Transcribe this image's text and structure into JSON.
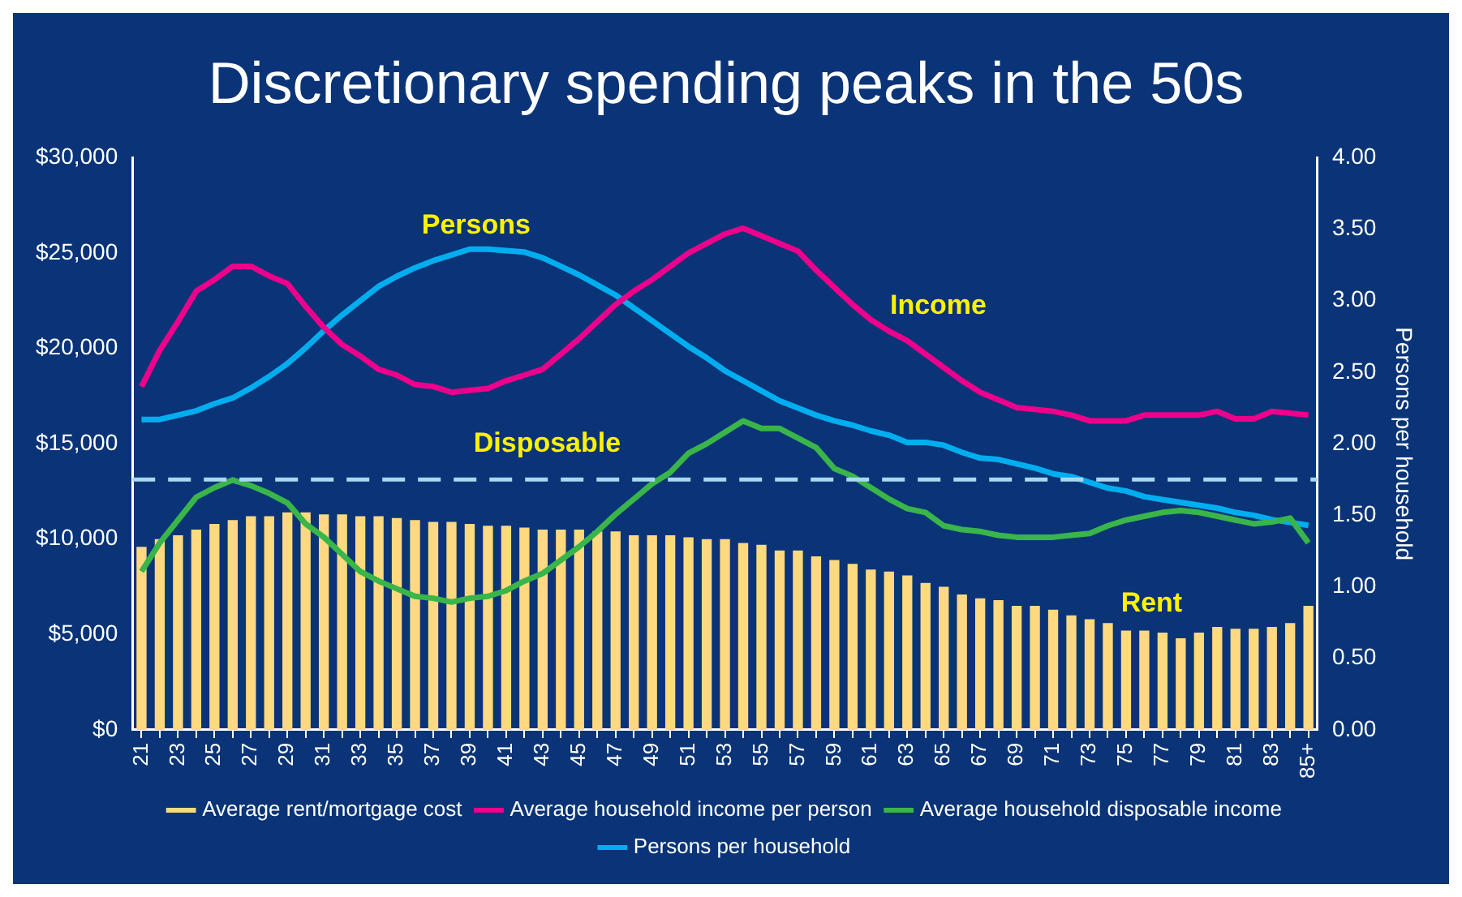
{
  "chart_data": {
    "type": "bar",
    "title": "Discretionary spending peaks in the 50s",
    "y2label": "Persons per household",
    "categories": [
      "21",
      null,
      "23",
      null,
      "25",
      null,
      "27",
      null,
      "29",
      null,
      "31",
      null,
      "33",
      null,
      "35",
      null,
      "37",
      null,
      "39",
      null,
      "41",
      null,
      "43",
      null,
      "45",
      null,
      "47",
      null,
      "49",
      null,
      "51",
      null,
      "53",
      null,
      "55",
      null,
      "57",
      null,
      "59",
      null,
      "61",
      null,
      "63",
      null,
      "65",
      null,
      "67",
      null,
      "69",
      null,
      "71",
      null,
      "73",
      null,
      "75",
      null,
      "77",
      null,
      "79",
      null,
      "81",
      null,
      "83",
      null,
      "85+"
    ],
    "series": [
      {
        "name": "Average rent/mortgage cost",
        "color": "#ffd97f",
        "values": [
          9600,
          10000,
          10200,
          10500,
          10800,
          11000,
          11200,
          11200,
          11400,
          11400,
          11300,
          11300,
          11200,
          11200,
          11100,
          11000,
          10900,
          10900,
          10800,
          10700,
          10700,
          10600,
          10500,
          10500,
          10500,
          10400,
          10400,
          10200,
          10200,
          10200,
          10100,
          10000,
          10000,
          9800,
          9700,
          9400,
          9400,
          9100,
          8900,
          8700,
          8400,
          8300,
          8100,
          7700,
          7500,
          7100,
          6900,
          6800,
          6500,
          6500,
          6300,
          6000,
          5800,
          5600,
          5200,
          5200,
          5100,
          4800,
          5100,
          5400,
          5300,
          5300,
          5400,
          5600,
          6500
        ]
      },
      {
        "name": "Average household income per person",
        "type": "line",
        "color": "#ec008c",
        "values": [
          18000,
          19900,
          21400,
          23000,
          23600,
          24300,
          24300,
          23800,
          23400,
          22200,
          21100,
          20200,
          19600,
          18900,
          18600,
          18100,
          18000,
          17700,
          17800,
          17900,
          18300,
          18600,
          18900,
          19700,
          20500,
          21400,
          22300,
          23000,
          23600,
          24300,
          25000,
          25500,
          26000,
          26300,
          25900,
          25500,
          25100,
          24100,
          23200,
          22300,
          21500,
          20900,
          20400,
          19700,
          19000,
          18300,
          17700,
          17300,
          16900,
          16800,
          16700,
          16500,
          16200,
          16200,
          16200,
          16500,
          16500,
          16500,
          16500,
          16700,
          16300,
          16300,
          16700,
          16600,
          16500
        ]
      },
      {
        "name": "Average household disposable income",
        "type": "line",
        "color": "#39b54a",
        "values": [
          8300,
          9800,
          11000,
          12200,
          12700,
          13100,
          12800,
          12400,
          11900,
          10800,
          10100,
          9200,
          8300,
          7800,
          7400,
          7000,
          6900,
          6700,
          6900,
          7000,
          7300,
          7800,
          8200,
          8900,
          9600,
          10400,
          11300,
          12100,
          12900,
          13500,
          14500,
          15000,
          15600,
          16200,
          15800,
          15800,
          15300,
          14800,
          13700,
          13300,
          12700,
          12100,
          11600,
          11400,
          10700,
          10500,
          10400,
          10200,
          10100,
          10100,
          10100,
          10200,
          10300,
          10700,
          11000,
          11200,
          11400,
          11500,
          11400,
          11200,
          11000,
          10800,
          10900,
          11100,
          9800
        ]
      },
      {
        "name": "Persons per household",
        "type": "line",
        "axis": "y2",
        "color": "#00aeef",
        "values": [
          2.17,
          2.17,
          2.2,
          2.23,
          2.28,
          2.32,
          2.39,
          2.47,
          2.56,
          2.67,
          2.79,
          2.9,
          3.0,
          3.1,
          3.17,
          3.23,
          3.28,
          3.32,
          3.36,
          3.36,
          3.35,
          3.34,
          3.3,
          3.24,
          3.18,
          3.11,
          3.04,
          2.95,
          2.86,
          2.77,
          2.68,
          2.6,
          2.51,
          2.44,
          2.37,
          2.3,
          2.25,
          2.2,
          2.16,
          2.13,
          2.09,
          2.06,
          2.01,
          2.01,
          1.99,
          1.94,
          1.9,
          1.89,
          1.86,
          1.83,
          1.79,
          1.77,
          1.73,
          1.69,
          1.67,
          1.63,
          1.61,
          1.59,
          1.57,
          1.55,
          1.52,
          1.5,
          1.47,
          1.45,
          1.43
        ]
      }
    ],
    "ylim": [
      0,
      30000
    ],
    "yticks": [
      {
        "value": 0,
        "label": "$0"
      },
      {
        "value": 5000,
        "label": "$5,000"
      },
      {
        "value": 10000,
        "label": "$10,000"
      },
      {
        "value": 15000,
        "label": "$15,000"
      },
      {
        "value": 20000,
        "label": "$20,000"
      },
      {
        "value": 25000,
        "label": "$25,000"
      },
      {
        "value": 30000,
        "label": "$30,000"
      }
    ],
    "y2lim": [
      0,
      4
    ],
    "y2ticks": [
      {
        "value": 0,
        "label": "0.00"
      },
      {
        "value": 0.5,
        "label": "0.50"
      },
      {
        "value": 1,
        "label": "1.00"
      },
      {
        "value": 1.5,
        "label": "1.50"
      },
      {
        "value": 2,
        "label": "2.00"
      },
      {
        "value": 2.5,
        "label": "2.50"
      },
      {
        "value": 3,
        "label": "3.00"
      },
      {
        "value": 3.5,
        "label": "3.50"
      },
      {
        "value": 4,
        "label": "4.00"
      }
    ],
    "ref_lines": [
      {
        "axis": "y2",
        "value": 1.75,
        "color": "#a8d8f0",
        "line_style": "dashed"
      }
    ],
    "annotations": [
      "Persons",
      "Income",
      "Disposable",
      "Rent"
    ],
    "grid": false,
    "legend": "bottom",
    "marker": "none",
    "line_style": "solid"
  }
}
